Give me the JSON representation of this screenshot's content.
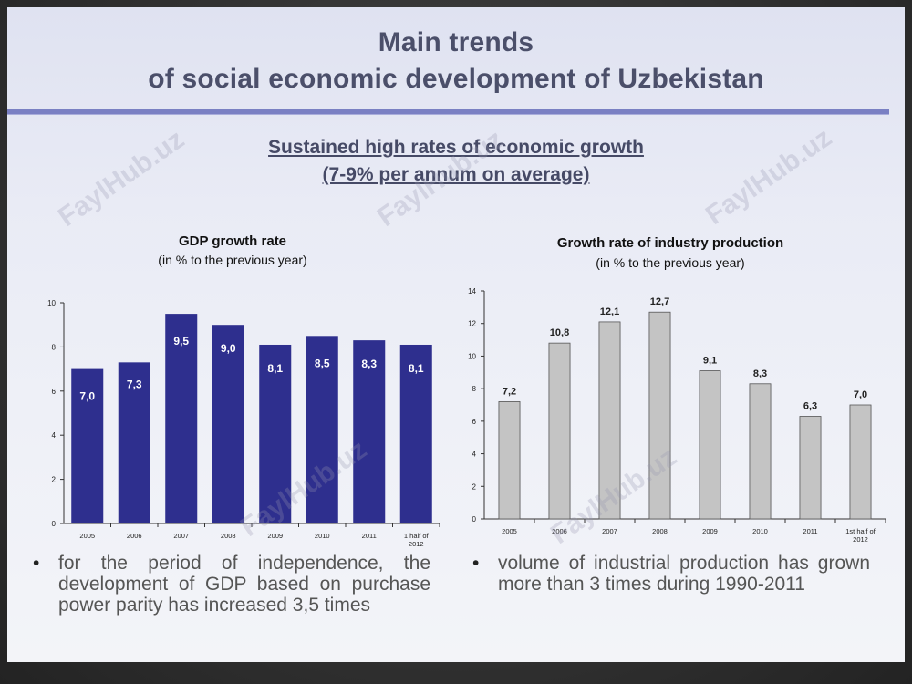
{
  "slide": {
    "title_line1": "Main trends",
    "title_line2": "of social economic development of Uzbekistan",
    "subtitle_line1": "Sustained high rates of economic growth",
    "subtitle_line2": "(7-9% per annum on average)",
    "watermark": "FaylHub.uz"
  },
  "colors": {
    "gdp_bar": "#2e2f8e",
    "industry_bar": "#c4c4c4",
    "title": "#4b4f6a",
    "rule": "#7a80c3"
  },
  "chart_data": [
    {
      "type": "bar",
      "title": "GDP growth rate",
      "subtitle": "(in % to the previous year)",
      "categories": [
        "2005",
        "2006",
        "2007",
        "2008",
        "2009",
        "2010",
        "2011",
        "1 half of 2012"
      ],
      "category_lines": [
        [
          "2005"
        ],
        [
          "2006"
        ],
        [
          "2007"
        ],
        [
          "2008"
        ],
        [
          "2009"
        ],
        [
          "2010"
        ],
        [
          "2011"
        ],
        [
          "1 half of",
          "2012"
        ]
      ],
      "values": [
        7.0,
        7.3,
        9.5,
        9.0,
        8.1,
        8.5,
        8.3,
        8.1
      ],
      "data_labels": [
        "7,0",
        "7,3",
        "9,5",
        "9,0",
        "8,1",
        "8,5",
        "8,3",
        "8,1"
      ],
      "ylim": [
        0,
        10
      ],
      "yticks": [
        "0",
        "2",
        "4",
        "6",
        "8",
        "10"
      ],
      "ytick_values": [
        0,
        2,
        4,
        6,
        8,
        10
      ],
      "grid": false,
      "label_position": "inside"
    },
    {
      "type": "bar",
      "title": "Growth rate of industry production",
      "subtitle": "(in % to the previous year)",
      "categories": [
        "2005",
        "2006",
        "2007",
        "2008",
        "2009",
        "2010",
        "2011",
        "1st half of 2012"
      ],
      "category_lines": [
        [
          "2005"
        ],
        [
          "2006"
        ],
        [
          "2007"
        ],
        [
          "2008"
        ],
        [
          "2009"
        ],
        [
          "2010"
        ],
        [
          "2011"
        ],
        [
          "1st half of",
          "2012"
        ]
      ],
      "values": [
        7.2,
        10.8,
        12.1,
        12.7,
        9.1,
        8.3,
        6.3,
        7.0
      ],
      "data_labels": [
        "7,2",
        "10,8",
        "12,1",
        "12,7",
        "9,1",
        "8,3",
        "6,3",
        "7,0"
      ],
      "ylim": [
        0,
        14
      ],
      "yticks": [
        "0",
        "2",
        "4",
        "6",
        "8",
        "10",
        "12",
        "14"
      ],
      "ytick_values": [
        0,
        2,
        4,
        6,
        8,
        10,
        12,
        14
      ],
      "grid": false,
      "label_position": "above"
    }
  ],
  "bullets": [
    {
      "symbol": "•",
      "text": "for the period of independence, the development of GDP based on purchase power parity has increased 3,5 times"
    },
    {
      "symbol": "•",
      "text": "volume of industrial production has grown more than 3 times during 1990-2011"
    }
  ]
}
